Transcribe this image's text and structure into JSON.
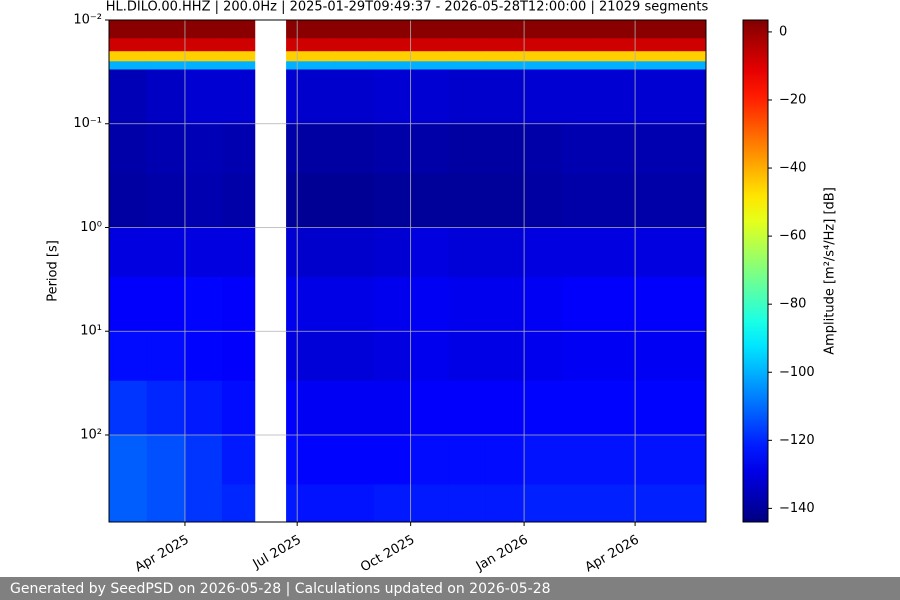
{
  "chart_data": {
    "type": "spectrogram",
    "title": "HL.DILO.00.HHZ | 200.0Hz | 2025-01-29T09:49:37 - 2026-05-28T12:00:00 | 21029 segments",
    "y_label": "Period [s]",
    "colorbar_label": "Amplitude [m²/s⁴/Hz] [dB]",
    "footer": "Generated by SeedPSD on 2026-05-28 | Calculations updated on 2026-05-28",
    "xlim": [
      "2025-01-29T09:49:37",
      "2026-05-28T12:00:00"
    ],
    "xticks": [
      {
        "value": "2025-04",
        "label": "Apr 2025"
      },
      {
        "value": "2025-07",
        "label": "Jul 2025"
      },
      {
        "value": "2025-10",
        "label": "Oct 2025"
      },
      {
        "value": "2026-01",
        "label": "Jan 2026"
      },
      {
        "value": "2026-04",
        "label": "Apr 2026"
      }
    ],
    "ylim": [
      0.01,
      690
    ],
    "y_log": true,
    "y_inverted": true,
    "yticks": [
      {
        "value": 0.01,
        "label": "10⁻²"
      },
      {
        "value": 0.1,
        "label": "10⁻¹"
      },
      {
        "value": 1,
        "label": "10⁰"
      },
      {
        "value": 10,
        "label": "10¹"
      },
      {
        "value": 100,
        "label": "10²"
      }
    ],
    "grid": true,
    "colormap": "jet",
    "clim": [
      -144,
      3.5
    ],
    "cticks": [
      {
        "value": 0,
        "label": "0"
      },
      {
        "value": -20,
        "label": "−20"
      },
      {
        "value": -40,
        "label": "−40"
      },
      {
        "value": -60,
        "label": "−60"
      },
      {
        "value": -80,
        "label": "−80"
      },
      {
        "value": -100,
        "label": "−100"
      },
      {
        "value": -120,
        "label": "−120"
      },
      {
        "value": -140,
        "label": "−140"
      }
    ],
    "x": [
      "2025-01",
      "2025-02",
      "2025-03",
      "2025-04",
      "2025-05",
      "2025-06",
      "2025-07",
      "2025-08",
      "2025-09",
      "2025-10",
      "2025-11",
      "2025-12",
      "2026-01",
      "2026-02",
      "2026-03",
      "2026-04",
      "2026-05"
    ],
    "y_edges": [
      0.01,
      0.015,
      0.02,
      0.025,
      0.03,
      0.1,
      0.3,
      1,
      3,
      10,
      30,
      100,
      300,
      690
    ],
    "gaps": [
      [
        "2025-05-28",
        "2025-06-22"
      ]
    ],
    "values": [
      [
        2,
        2,
        2,
        2,
        2,
        2,
        2,
        2,
        2,
        2,
        2,
        2,
        2,
        2,
        2,
        2,
        2
      ],
      [
        -8,
        -8,
        -8,
        -8,
        -8,
        -8,
        -8,
        -8,
        -8,
        -8,
        -8,
        -8,
        -8,
        -8,
        -8,
        -8,
        -8
      ],
      [
        -45,
        -45,
        -45,
        -45,
        -45,
        -45,
        -45,
        -45,
        -45,
        -45,
        -45,
        -45,
        -45,
        -45,
        -45,
        -45,
        -45
      ],
      [
        -100,
        -100,
        -100,
        -100,
        -100,
        -100,
        -100,
        -100,
        -100,
        -100,
        -100,
        -100,
        -100,
        -100,
        -100,
        -100,
        -100
      ],
      [
        -136,
        -136,
        -134,
        -132,
        -132,
        -132,
        -133,
        -133,
        -132,
        -132,
        -133,
        -133,
        -132,
        -132,
        -132,
        -132,
        -132
      ],
      [
        -138,
        -138,
        -137,
        -136,
        -137,
        -138,
        -139,
        -139,
        -138,
        -138,
        -139,
        -139,
        -138,
        -137,
        -137,
        -137,
        -137
      ],
      [
        -139,
        -139,
        -138,
        -137,
        -138,
        -140,
        -141,
        -141,
        -140,
        -140,
        -140,
        -140,
        -139,
        -138,
        -138,
        -138,
        -138
      ],
      [
        -130,
        -130,
        -130,
        -130,
        -130,
        -132,
        -133,
        -133,
        -132,
        -130,
        -131,
        -131,
        -130,
        -130,
        -130,
        -130,
        -130
      ],
      [
        -126,
        -126,
        -126,
        -125,
        -126,
        -128,
        -129,
        -129,
        -128,
        -127,
        -128,
        -128,
        -127,
        -126,
        -126,
        -126,
        -126
      ],
      [
        -124,
        -124,
        -124,
        -125,
        -126,
        -130,
        -131,
        -131,
        -130,
        -128,
        -129,
        -129,
        -128,
        -127,
        -127,
        -127,
        -127
      ],
      [
        -118,
        -118,
        -120,
        -122,
        -124,
        -126,
        -127,
        -127,
        -127,
        -126,
        -126,
        -126,
        -125,
        -125,
        -125,
        -125,
        -125
      ],
      [
        -112,
        -112,
        -114,
        -118,
        -122,
        -124,
        -125,
        -125,
        -125,
        -124,
        -124,
        -124,
        -123,
        -123,
        -123,
        -123,
        -123
      ],
      [
        -112,
        -112,
        -114,
        -118,
        -120,
        -122,
        -123,
        -123,
        -122,
        -122,
        -122,
        -122,
        -121,
        -121,
        -121,
        -121,
        -121
      ]
    ]
  }
}
